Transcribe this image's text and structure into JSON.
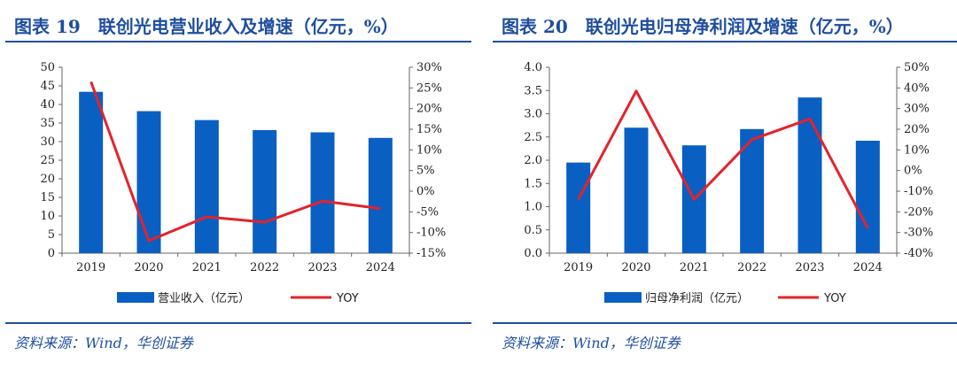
{
  "colors": {
    "bar": "#0a5fc3",
    "line": "#e3232b",
    "accent": "#1f4e9d"
  },
  "panels": [
    {
      "title": "图表 19　联创光电营业收入及增速（亿元，%）",
      "source": "资料来源：Wind，华创证券",
      "legend_bar": "营业收入（亿元）",
      "legend_line": "YOY"
    },
    {
      "title": "图表 20　联创光电归母净利润及增速（亿元，%）",
      "source": "资料来源：Wind，华创证券",
      "legend_bar": "归母净利润（亿元）",
      "legend_line": "YOY"
    }
  ],
  "chart_data": [
    {
      "type": "bar",
      "categories": [
        "2019",
        "2020",
        "2021",
        "2022",
        "2023",
        "2024"
      ],
      "series": [
        {
          "name": "营业收入（亿元）",
          "type": "bar",
          "axis": "left",
          "values": [
            43.4,
            38.2,
            35.8,
            33.1,
            32.5,
            31.0
          ]
        },
        {
          "name": "YOY",
          "type": "line",
          "axis": "right",
          "values": [
            26.5,
            -12.0,
            -6.2,
            -7.5,
            -2.4,
            -4.2
          ]
        }
      ],
      "ylim": [
        0,
        50
      ],
      "y_ticks": [
        "0",
        "5",
        "10",
        "15",
        "20",
        "25",
        "30",
        "35",
        "40",
        "45",
        "50"
      ],
      "y2lim": [
        -15,
        30
      ],
      "y2_ticks": [
        "-15%",
        "-10%",
        "-5%",
        "0%",
        "5%",
        "10%",
        "15%",
        "20%",
        "25%",
        "30%"
      ],
      "legend": "bottom"
    },
    {
      "type": "bar",
      "categories": [
        "2019",
        "2020",
        "2021",
        "2022",
        "2023",
        "2024"
      ],
      "series": [
        {
          "name": "归母净利润（亿元）",
          "type": "bar",
          "axis": "left",
          "values": [
            1.95,
            2.7,
            2.32,
            2.67,
            3.35,
            2.42
          ]
        },
        {
          "name": "YOY",
          "type": "line",
          "axis": "right",
          "values": [
            -14.0,
            38.5,
            -14.0,
            15.0,
            25.0,
            -28.0
          ]
        }
      ],
      "ylim": [
        0,
        4
      ],
      "y_ticks": [
        "0.0",
        "0.5",
        "1.0",
        "1.5",
        "2.0",
        "2.5",
        "3.0",
        "3.5",
        "4.0"
      ],
      "y2lim": [
        -40,
        50
      ],
      "y2_ticks": [
        "-40%",
        "-30%",
        "-20%",
        "-10%",
        "0%",
        "10%",
        "20%",
        "30%",
        "40%",
        "50%"
      ],
      "legend": "bottom"
    }
  ]
}
